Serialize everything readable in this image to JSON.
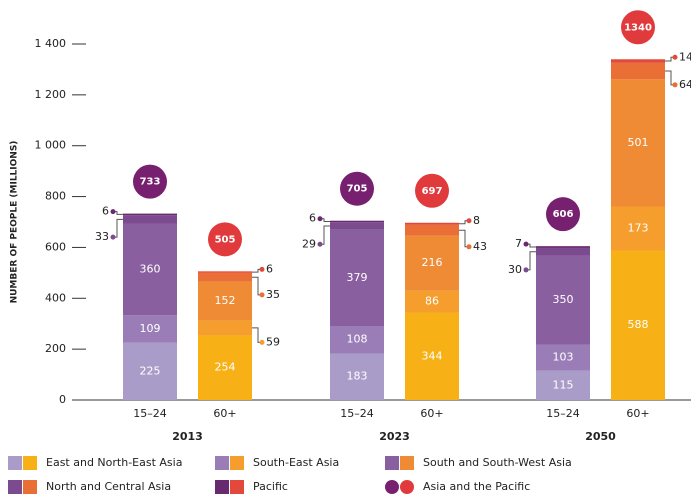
{
  "chart_data": {
    "type": "grouped_stacked_bar",
    "ylabel": "NUMBER OF PEOPLE (MILLIONS)",
    "groups": [
      "2013",
      "2023",
      "2050"
    ],
    "categories": [
      "15–24",
      "60+",
      "15–24",
      "60+",
      "15–24",
      "60+"
    ],
    "series": [
      {
        "name": "East and North-East Asia",
        "colors": [
          "#a99cc8",
          "#f7b116"
        ],
        "values": [
          225,
          254,
          183,
          344,
          115,
          588
        ]
      },
      {
        "name": "South-East Asia",
        "colors": [
          "#9a7db7",
          "#f59e2e"
        ],
        "values": [
          109,
          59,
          108,
          86,
          103,
          173
        ]
      },
      {
        "name": "South and South-West Asia",
        "colors": [
          "#8a5f9f",
          "#ef8a35"
        ],
        "values": [
          360,
          152,
          379,
          216,
          350,
          501
        ]
      },
      {
        "name": "North and Central Asia",
        "colors": [
          "#7b4a8f",
          "#ea6f36"
        ],
        "values": [
          33,
          35,
          29,
          43,
          30,
          64
        ]
      },
      {
        "name": "Pacific",
        "colors": [
          "#69296f",
          "#e2493a"
        ],
        "values": [
          6,
          6,
          6,
          8,
          7,
          14
        ]
      }
    ],
    "totals": {
      "name": "Asia and the Pacific",
      "colors": [
        "#77206f",
        "#e13a3d"
      ],
      "values": [
        733,
        505,
        705,
        697,
        606,
        1340
      ]
    },
    "ylim": [
      0,
      1400
    ],
    "yticks": [
      0,
      200,
      400,
      600,
      800,
      {
        "value": 1000,
        "label": "1 000"
      },
      {
        "value": 1200,
        "label": "1 200"
      },
      {
        "value": 1400,
        "label": "1 400"
      }
    ]
  }
}
